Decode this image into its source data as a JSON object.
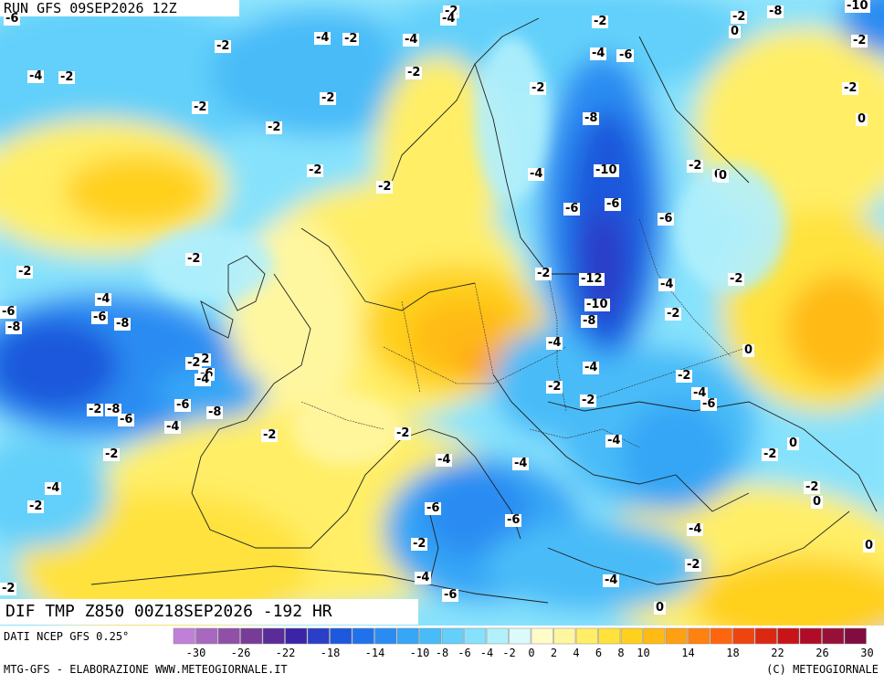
{
  "header": {
    "run": "RUN GFS 09SEP2026 12Z"
  },
  "field_title": "DIF TMP Z850 00Z18SEP2026 -192 HR",
  "legend": {
    "source": "DATI NCEP GFS 0.25°",
    "colors": [
      "#c080d8",
      "#a868c0",
      "#9050a8",
      "#783c98",
      "#5a2c98",
      "#3a24a8",
      "#2a3ec8",
      "#1e58dc",
      "#2072ec",
      "#2a8cf2",
      "#36a6f6",
      "#48bcf8",
      "#62d0fa",
      "#86e2fc",
      "#b2f0fc",
      "#dcfafc",
      "#fffcc8",
      "#fff6a0",
      "#ffee66",
      "#ffe23c",
      "#ffd01e",
      "#ffba14",
      "#ffa012",
      "#ff8210",
      "#ff640e",
      "#f0440e",
      "#dc2810",
      "#c81418",
      "#b00c28",
      "#981038",
      "#800c40"
    ],
    "tick_labels": [
      "-30",
      "-26",
      "-22",
      "-18",
      "-14",
      "-10",
      "-8",
      "-6",
      "-4",
      "-2",
      "0",
      "2",
      "4",
      "6",
      "8",
      "10",
      "14",
      "18",
      "22",
      "26",
      "30"
    ]
  },
  "footer": {
    "left": "MTG-GFS - ELABORAZIONE WWW.METEOGIORNALE.IT",
    "right": "(C) METEOGIORNALE"
  },
  "map_values": [
    "-6",
    "-2",
    "-4",
    "-2",
    "-2",
    "-8",
    "-10",
    "-2",
    "0",
    "-6",
    "-4",
    "-2",
    "-4",
    "-4",
    "-2",
    "-2",
    "-2",
    "-2",
    "-2",
    "-4",
    "-6",
    "-2",
    "-2",
    "-8",
    "0",
    "-2",
    "-2",
    "-10",
    "-2",
    "0",
    "-4",
    "-2",
    "-6",
    "-6",
    "-2",
    "-2",
    "-12",
    "-2",
    "-4",
    "-10",
    "-2",
    "-8",
    "-6",
    "-8",
    "-4",
    "-8",
    "0",
    "-2",
    "-4",
    "-4",
    "-2",
    "-2",
    "-2",
    "-4",
    "-6",
    "-6",
    "-8",
    "-2",
    "-6",
    "-8",
    "-6",
    "-4",
    "-2",
    "-2",
    "-4",
    "-2",
    "-2",
    "-4",
    "-4",
    "0",
    "-4",
    "-2",
    "-4",
    "-2",
    "-6",
    "-2",
    "0",
    "-6",
    "-2",
    "-2",
    "-4",
    "-2",
    "-6",
    "-4",
    "0",
    "0",
    "-4",
    "-6",
    "0",
    "-2",
    "-6"
  ]
}
